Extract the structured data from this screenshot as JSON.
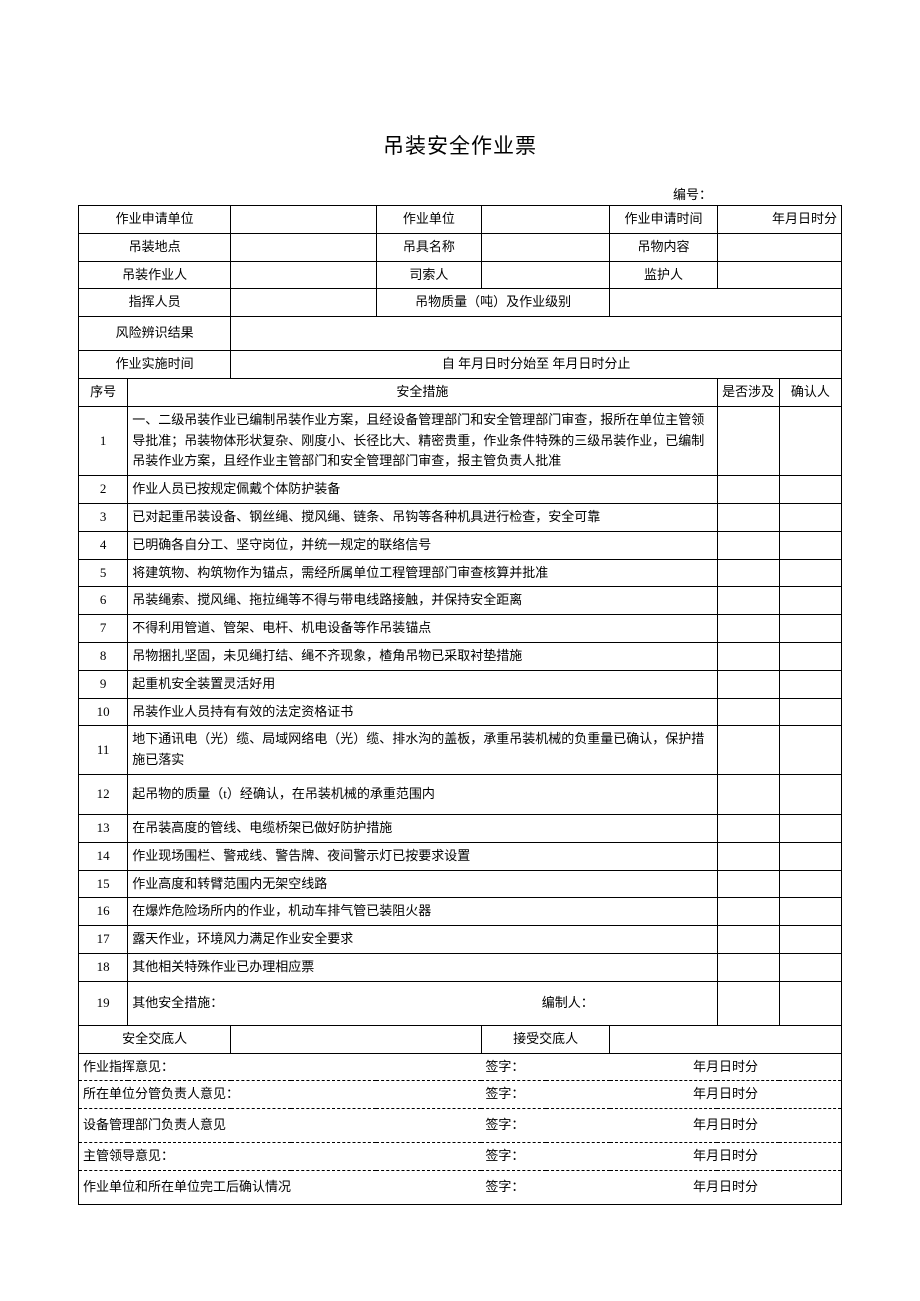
{
  "title": "吊装安全作业票",
  "serial_label": "编号：",
  "header": {
    "apply_unit": "作业申请单位",
    "work_unit": "作业单位",
    "apply_time": "作业申请时间",
    "apply_time_val": "年月日时分",
    "location": "吊装地点",
    "tool_name": "吊具名称",
    "object_content": "吊物内容",
    "operator": "吊装作业人",
    "rigger": "司索人",
    "guardian": "监护人",
    "commander": "指挥人员",
    "mass_level": "吊物质量（吨）及作业级别",
    "risk": "风险辨识结果",
    "impl_time": "作业实施时间",
    "impl_time_val": "自            年月日时分始至                          年月日时分止"
  },
  "cols": {
    "no": "序号",
    "measure": "安全措施",
    "involve": "是否涉及",
    "confirm": "确认人"
  },
  "items": [
    {
      "no": "1",
      "text": "一、二级吊装作业已编制吊装作业方案，且经设备管理部门和安全管理部门审查，报所在单位主管领导批准；吊装物体形状复杂、刚度小、长径比大、精密贵重，作业条件特殊的三级吊装作业，已编制吊装作业方案，且经作业主管部门和安全管理部门审查，报主管负责人批准"
    },
    {
      "no": "2",
      "text": "作业人员已按规定佩戴个体防护装备"
    },
    {
      "no": "3",
      "text": "已对起重吊装设备、钢丝绳、搅风绳、链条、吊钩等各种机具进行检查，安全可靠"
    },
    {
      "no": "4",
      "text": "已明确各自分工、坚守岗位，并统一规定的联络信号"
    },
    {
      "no": "5",
      "text": "将建筑物、构筑物作为锚点，需经所属单位工程管理部门审查核算并批准"
    },
    {
      "no": "6",
      "text": "吊装绳索、搅风绳、拖拉绳等不得与带电线路接触，并保持安全距离"
    },
    {
      "no": "7",
      "text": "不得利用管道、管架、电杆、机电设备等作吊装锚点"
    },
    {
      "no": "8",
      "text": "吊物捆扎坚固，未见绳打结、绳不齐现象，楂角吊物已采取衬垫措施"
    },
    {
      "no": "9",
      "text": "起重机安全装置灵活好用"
    },
    {
      "no": "10",
      "text": "吊装作业人员持有有效的法定资格证书"
    },
    {
      "no": "11",
      "text": "地下通讯电（光）缆、局域网络电（光）缆、排水沟的盖板，承重吊装机械的负重量已确认，保护措施已落实"
    },
    {
      "no": "12",
      "text": "起吊物的质量（t）经确认，在吊装机械的承重范围内"
    },
    {
      "no": "13",
      "text": "在吊装高度的管线、电缆桥架已做好防护措施"
    },
    {
      "no": "14",
      "text": "作业现场围栏、警戒线、警告牌、夜间警示灯已按要求设置"
    },
    {
      "no": "15",
      "text": "作业高度和转臂范围内无架空线路"
    },
    {
      "no": "16",
      "text": "在爆炸危险场所内的作业，机动车排气管已装阻火器"
    },
    {
      "no": "17",
      "text": "露天作业，环境风力满足作业安全要求"
    },
    {
      "no": "18",
      "text": "其他相关特殊作业已办理相应票"
    },
    {
      "no": "19",
      "text": "其他安全措施：　　　　　　　　　　　　　　　　　　　　　　　　　编制人："
    }
  ],
  "footer": {
    "disclose": "安全交底人",
    "receive": "接受交底人",
    "s1": "作业指挥意见：",
    "s2": "所在单位分管负责人意见：",
    "s3": "设备管理部门负责人意见",
    "s4": "主管领导意见：",
    "s5": "作业单位和所在单位完工后确认情况",
    "sign": "签字：",
    "date": "年月日时分"
  }
}
